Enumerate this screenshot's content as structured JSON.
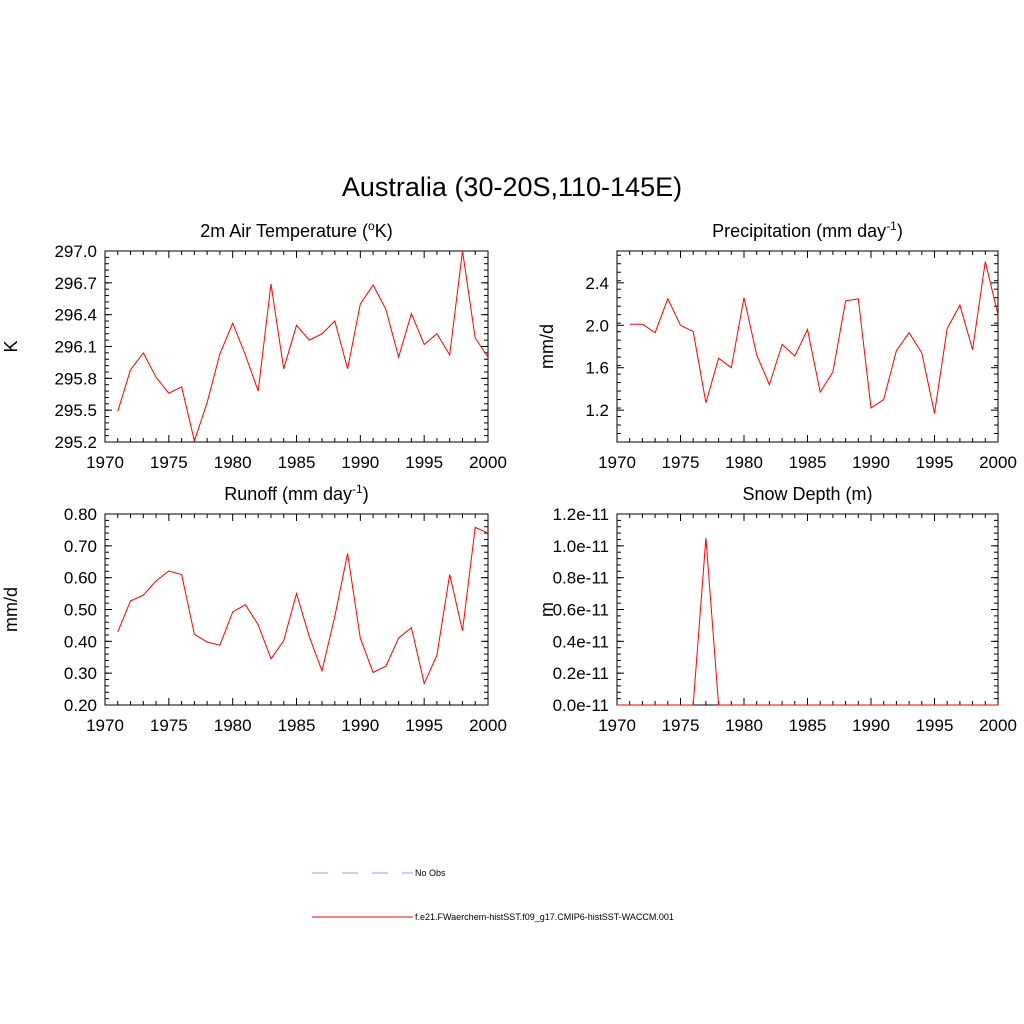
{
  "title": "Australia (30-20S,110-145E)",
  "colors": {
    "model": "#ff0000",
    "obs": "#9c9cdc"
  },
  "legend": [
    {
      "label": "No Obs",
      "style": "dashed",
      "color": "#9c9cdc"
    },
    {
      "label": "f.e21.FWaerchem-histSST.f09_g17.CMIP6-histSST-WACCM.001",
      "style": "solid",
      "color": "#ff0000"
    }
  ],
  "chart_data": [
    {
      "type": "line",
      "title_main": "2m Air Temperature (",
      "title_sup": "o",
      "title_after": "K)",
      "ylabel": "K",
      "xlim": [
        1970,
        2000
      ],
      "ylim": [
        295.2,
        297.0
      ],
      "xticks": [
        "1970",
        "1975",
        "1980",
        "1985",
        "1990",
        "1995",
        "2000"
      ],
      "yticks": [
        "295.2",
        "295.5",
        "295.8",
        "296.1",
        "296.4",
        "296.7",
        "297.0"
      ],
      "series": [
        {
          "x": [
            1971,
            1972,
            1973,
            1974,
            1975,
            1976,
            1977,
            1978,
            1979,
            1980,
            1981,
            1982,
            1983,
            1984,
            1985,
            1986,
            1987,
            1988,
            1989,
            1990,
            1991,
            1992,
            1993,
            1994,
            1995,
            1996,
            1997,
            1998,
            1999,
            2000
          ],
          "values": [
            295.49,
            295.88,
            296.04,
            295.81,
            295.66,
            295.72,
            295.21,
            295.57,
            296.03,
            296.32,
            296.02,
            295.68,
            296.69,
            295.89,
            296.3,
            296.16,
            296.22,
            296.34,
            295.89,
            296.5,
            296.68,
            296.45,
            296.0,
            296.41,
            296.12,
            296.22,
            296.02,
            297.0,
            296.18,
            296.0
          ]
        }
      ]
    },
    {
      "type": "line",
      "title_main": "Precipitation (mm day",
      "title_sup": "-1",
      "title_after": ")",
      "ylabel": "mm/d",
      "xlim": [
        1970,
        2000
      ],
      "ylim": [
        0.9,
        2.7
      ],
      "xticks": [
        "1970",
        "1975",
        "1980",
        "1985",
        "1990",
        "1995",
        "2000"
      ],
      "yticks": [
        "1.2",
        "1.6",
        "2.0",
        "2.4"
      ],
      "yticks_at": [
        1.2,
        1.6,
        2.0,
        2.4
      ],
      "series": [
        {
          "x": [
            1971,
            1972,
            1973,
            1974,
            1975,
            1976,
            1977,
            1978,
            1979,
            1980,
            1981,
            1982,
            1983,
            1984,
            1985,
            1986,
            1987,
            1988,
            1989,
            1990,
            1991,
            1992,
            1993,
            1994,
            1995,
            1996,
            1997,
            1998,
            1999,
            2000
          ],
          "values": [
            2.01,
            2.01,
            1.93,
            2.25,
            2.0,
            1.94,
            1.27,
            1.69,
            1.6,
            2.26,
            1.72,
            1.44,
            1.82,
            1.71,
            1.96,
            1.37,
            1.56,
            2.23,
            2.25,
            1.22,
            1.3,
            1.76,
            1.93,
            1.74,
            1.17,
            1.97,
            2.19,
            1.77,
            2.6,
            2.1
          ]
        }
      ]
    },
    {
      "type": "line",
      "title_main": "Runoff (mm day",
      "title_sup": "-1",
      "title_after": ")",
      "ylabel": "mm/d",
      "xlim": [
        1970,
        2000
      ],
      "ylim": [
        0.2,
        0.8
      ],
      "xticks": [
        "1970",
        "1975",
        "1980",
        "1985",
        "1990",
        "1995",
        "2000"
      ],
      "yticks": [
        "0.20",
        "0.30",
        "0.40",
        "0.50",
        "0.60",
        "0.70",
        "0.80"
      ],
      "series": [
        {
          "x": [
            1971,
            1972,
            1973,
            1974,
            1975,
            1976,
            1977,
            1978,
            1979,
            1980,
            1981,
            1982,
            1983,
            1984,
            1985,
            1986,
            1987,
            1988,
            1989,
            1990,
            1991,
            1992,
            1993,
            1994,
            1995,
            1996,
            1997,
            1998,
            1999,
            2000
          ],
          "values": [
            0.43,
            0.527,
            0.545,
            0.59,
            0.621,
            0.61,
            0.422,
            0.398,
            0.388,
            0.492,
            0.515,
            0.452,
            0.345,
            0.402,
            0.55,
            0.415,
            0.307,
            0.478,
            0.676,
            0.41,
            0.302,
            0.322,
            0.41,
            0.443,
            0.268,
            0.356,
            0.61,
            0.433,
            0.758,
            0.74
          ]
        }
      ]
    },
    {
      "type": "line",
      "title_main": "Snow Depth (m)",
      "title_sup": "",
      "title_after": "",
      "ylabel": "m",
      "xlim": [
        1970,
        2000
      ],
      "ylim": [
        0.0,
        1.2e-11
      ],
      "xticks": [
        "1970",
        "1975",
        "1980",
        "1985",
        "1990",
        "1995",
        "2000"
      ],
      "yticks": [
        "0.0e-11",
        "0.2e-11",
        "0.4e-11",
        "0.6e-11",
        "0.8e-11",
        "1.0e-11",
        "1.2e-11"
      ],
      "series": [
        {
          "x": [
            1970,
            1971,
            1972,
            1973,
            1974,
            1975,
            1976,
            1977,
            1978,
            1979,
            1980,
            1981,
            1982,
            1983,
            1984,
            1985,
            1986,
            1987,
            1988,
            1989,
            1990,
            1991,
            1992,
            1993,
            1994,
            1995,
            1996,
            1997,
            1998,
            1999,
            2000
          ],
          "values": [
            0,
            0,
            0,
            0,
            0,
            0,
            0,
            1.05e-11,
            0,
            0,
            0,
            0,
            0,
            0,
            0,
            0,
            0,
            0,
            0,
            0,
            0,
            0,
            0,
            0,
            0,
            0,
            0,
            0,
            0,
            0,
            0
          ]
        }
      ]
    }
  ]
}
